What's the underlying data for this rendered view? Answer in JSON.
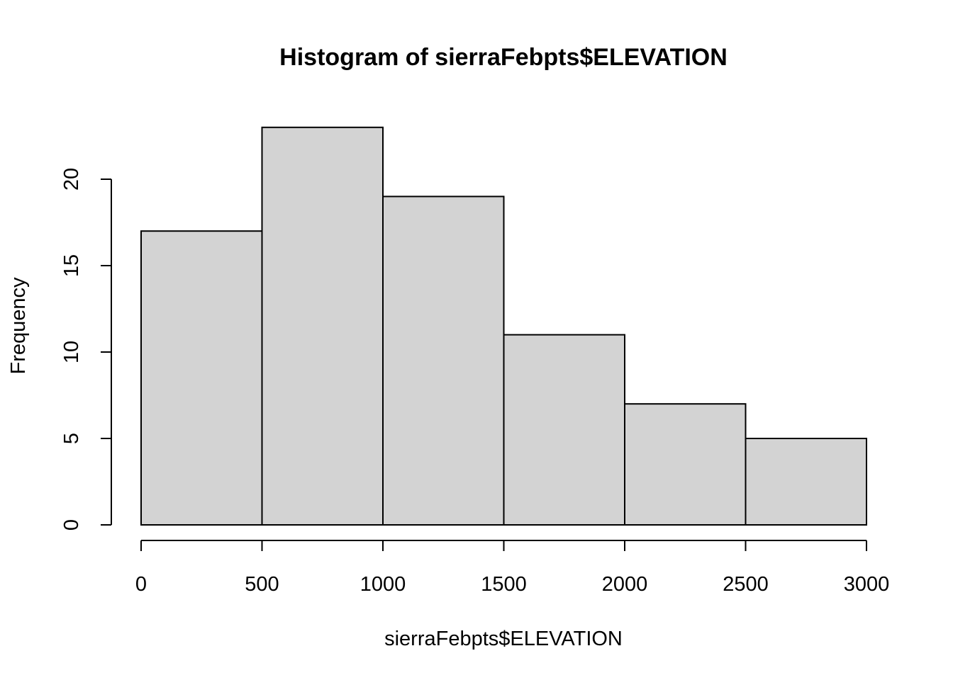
{
  "chart_data": {
    "type": "bar",
    "subtype": "histogram",
    "title": "Histogram of sierraFebpts$ELEVATION",
    "xlabel": "sierraFebpts$ELEVATION",
    "ylabel": "Frequency",
    "bins": [
      {
        "from": 0,
        "to": 500,
        "count": 17
      },
      {
        "from": 500,
        "to": 1000,
        "count": 23
      },
      {
        "from": 1000,
        "to": 1500,
        "count": 19
      },
      {
        "from": 1500,
        "to": 2000,
        "count": 11
      },
      {
        "from": 2000,
        "to": 2500,
        "count": 7
      },
      {
        "from": 2500,
        "to": 3000,
        "count": 5
      }
    ],
    "x_ticks": [
      "0",
      "500",
      "1000",
      "1500",
      "2000",
      "2500",
      "3000"
    ],
    "y_ticks": [
      "0",
      "5",
      "10",
      "15",
      "20"
    ],
    "xlim": [
      0,
      3000
    ],
    "ylim": [
      0,
      23
    ],
    "grid": false,
    "legend": "none",
    "colors": {
      "bar_fill": "#d3d3d3",
      "bar_stroke": "#000000",
      "axis": "#000000",
      "background": "#ffffff"
    }
  }
}
